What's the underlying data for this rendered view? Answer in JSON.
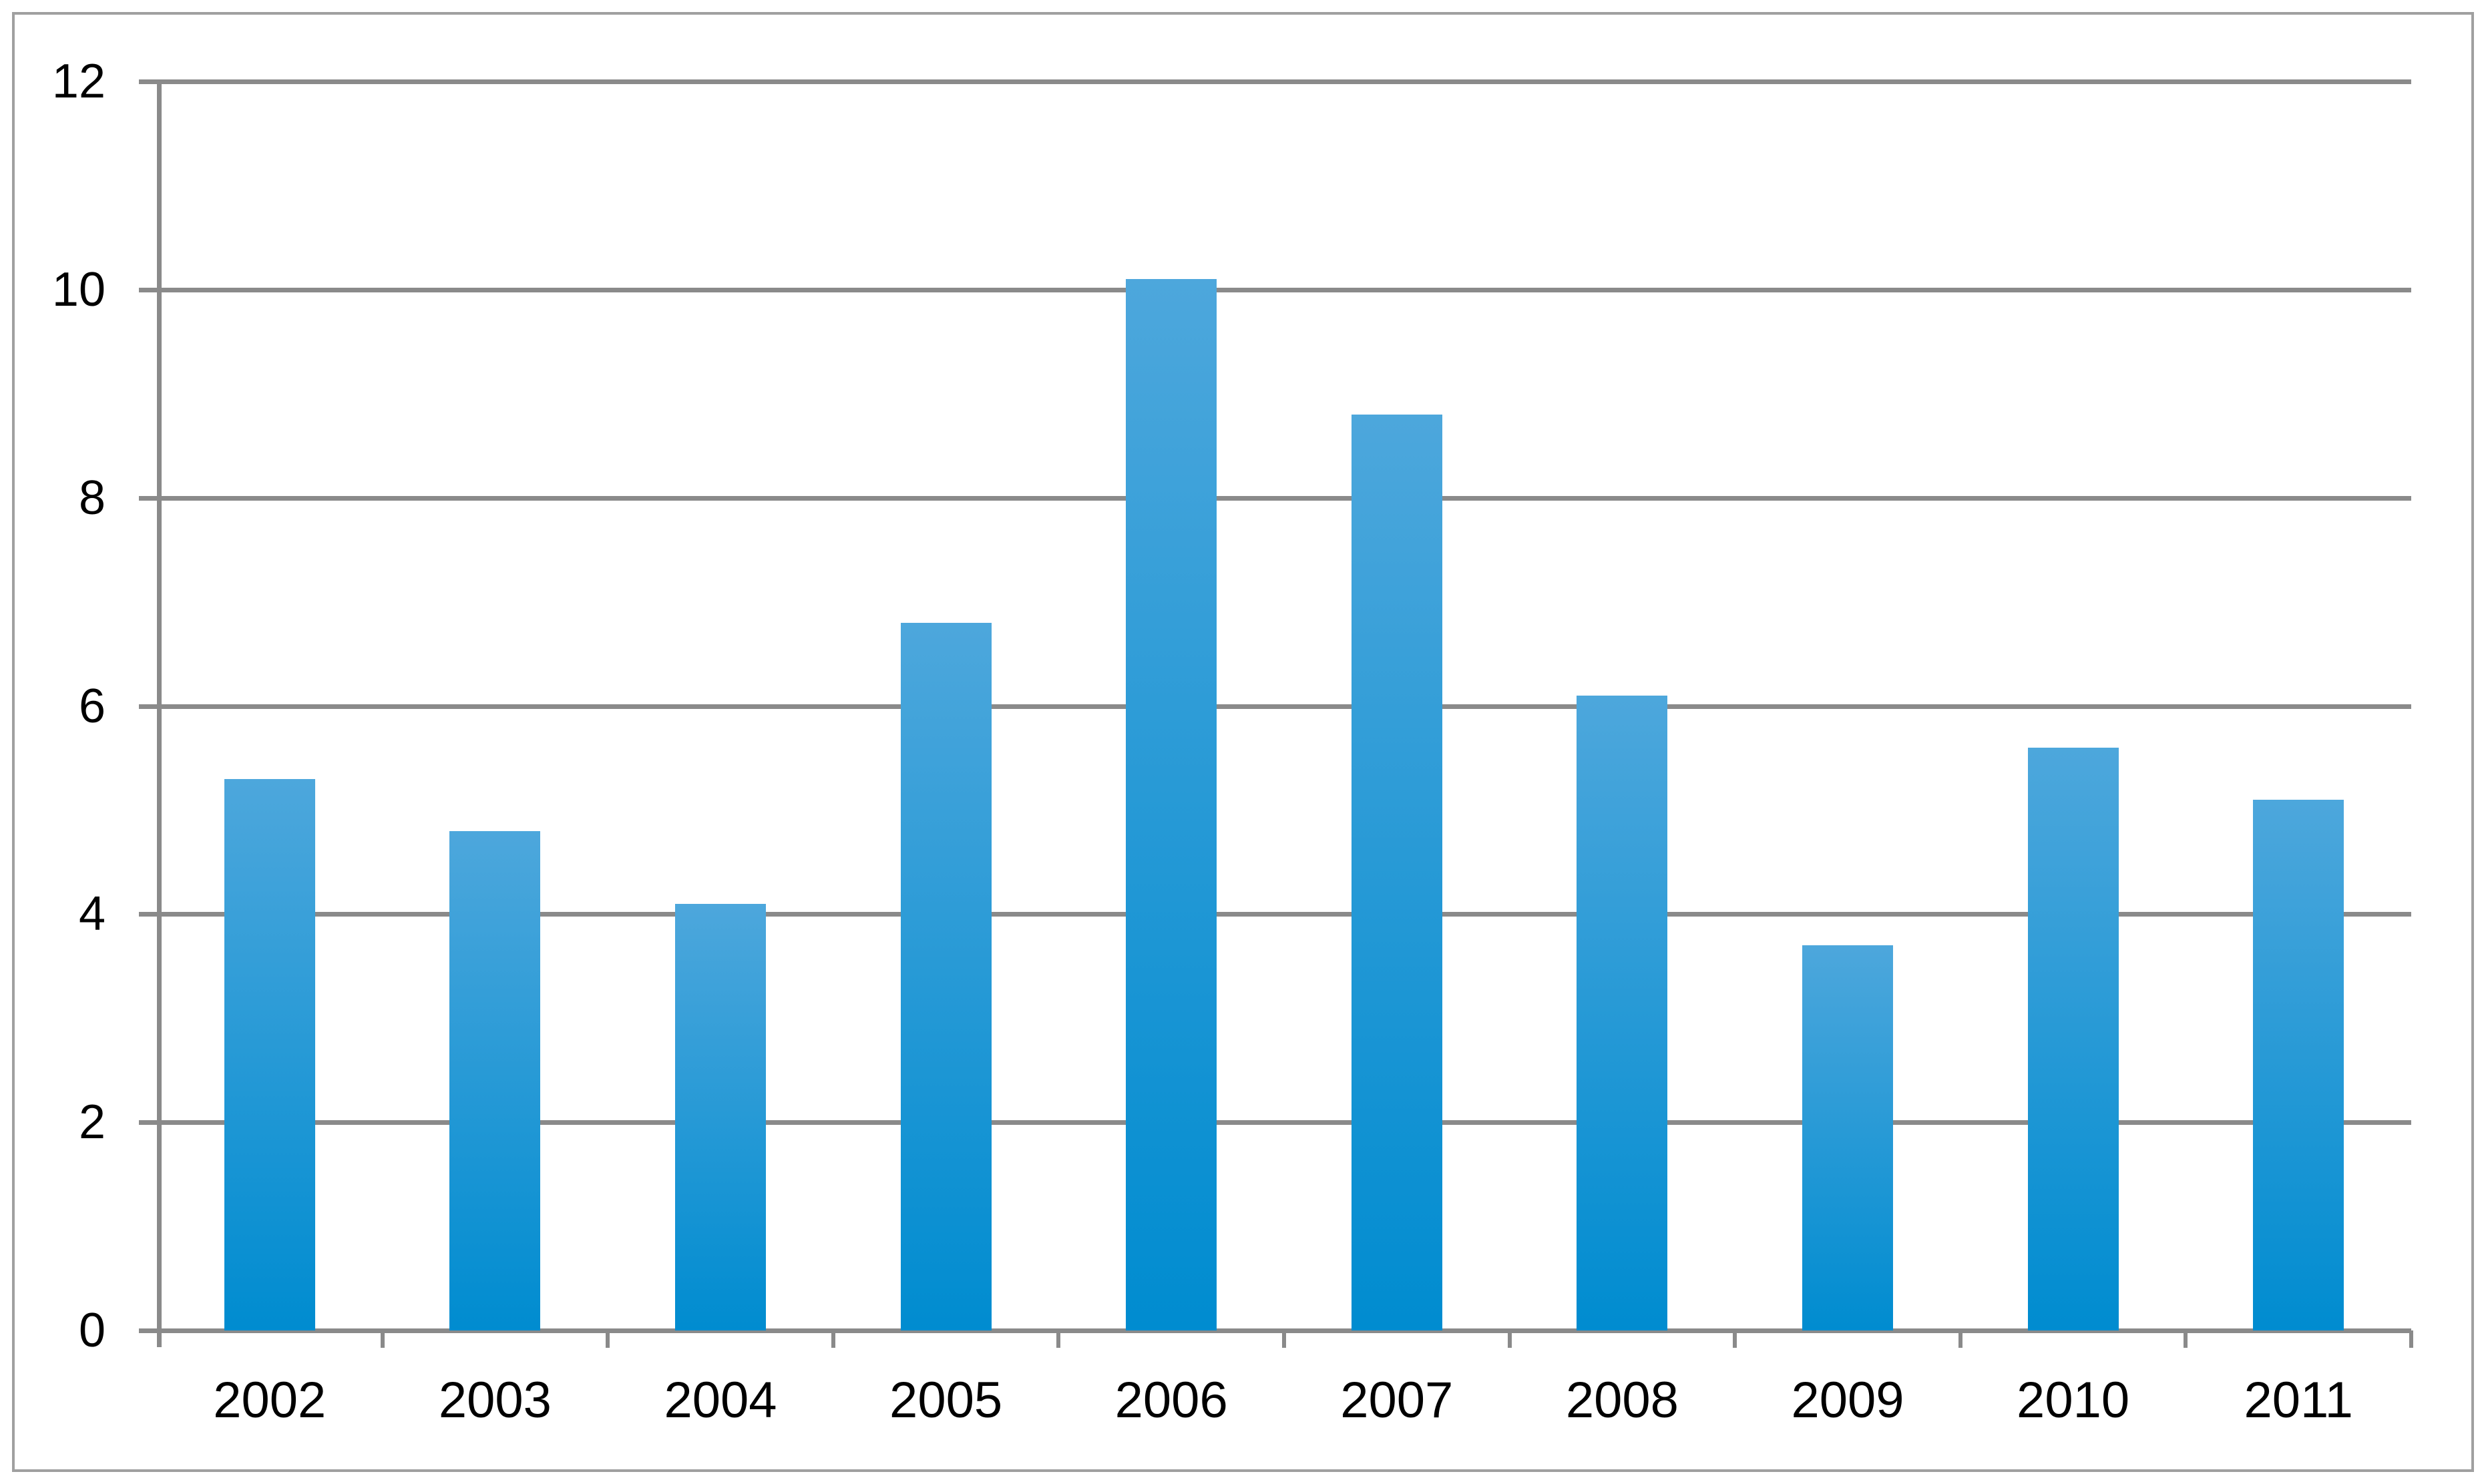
{
  "chart_data": {
    "type": "bar",
    "title": "",
    "xlabel": "",
    "ylabel": "",
    "categories": [
      "2002",
      "2003",
      "2004",
      "2005",
      "2006",
      "2007",
      "2008",
      "2009",
      "2010",
      "2011"
    ],
    "values": [
      5.3,
      4.8,
      4.1,
      6.8,
      10.1,
      8.8,
      6.1,
      3.7,
      5.6,
      5.1
    ],
    "ylim": [
      0,
      12
    ],
    "yticks": [
      0,
      2,
      4,
      6,
      8,
      10,
      12
    ],
    "grid": "horizontal-only",
    "legend": "none",
    "colors": {
      "bar_gradient_top": "#4DA7DC",
      "bar_gradient_bottom": "#008CD0",
      "grid_and_axis": "#8A8A8A",
      "outer_border": "#A0A0A0",
      "label_text": "#000000",
      "background": "#FFFFFF"
    }
  }
}
